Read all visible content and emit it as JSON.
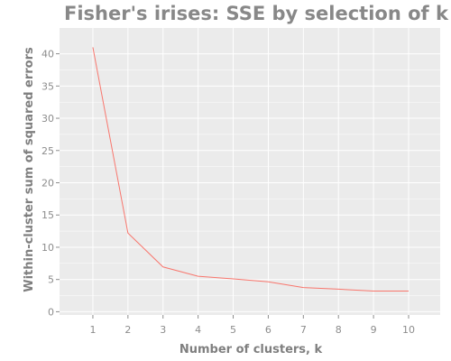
{
  "chart_data": {
    "type": "line",
    "title": "Fisher's irises: SSE by selection of k",
    "xlabel": "Number of clusters, k",
    "ylabel": "Within-cluster sum of squared errors",
    "x": [
      1,
      2,
      3,
      4,
      5,
      6,
      7,
      8,
      9,
      10
    ],
    "series": [
      {
        "values": [
          41.0,
          12.2,
          6.95,
          5.5,
          5.1,
          4.65,
          3.75,
          3.5,
          3.2,
          3.2
        ]
      }
    ],
    "xlim": [
      0.05,
      10.9
    ],
    "ylim": [
      -0.5,
      44
    ],
    "xticks": [
      1,
      2,
      3,
      4,
      5,
      6,
      7,
      8,
      9,
      10
    ],
    "yticks": [
      0,
      5,
      10,
      15,
      20,
      25,
      30,
      35,
      40
    ],
    "grid": true,
    "colors": {
      "line": "#f8766d",
      "panel": "#ebebeb",
      "grid": "#ffffff"
    }
  }
}
